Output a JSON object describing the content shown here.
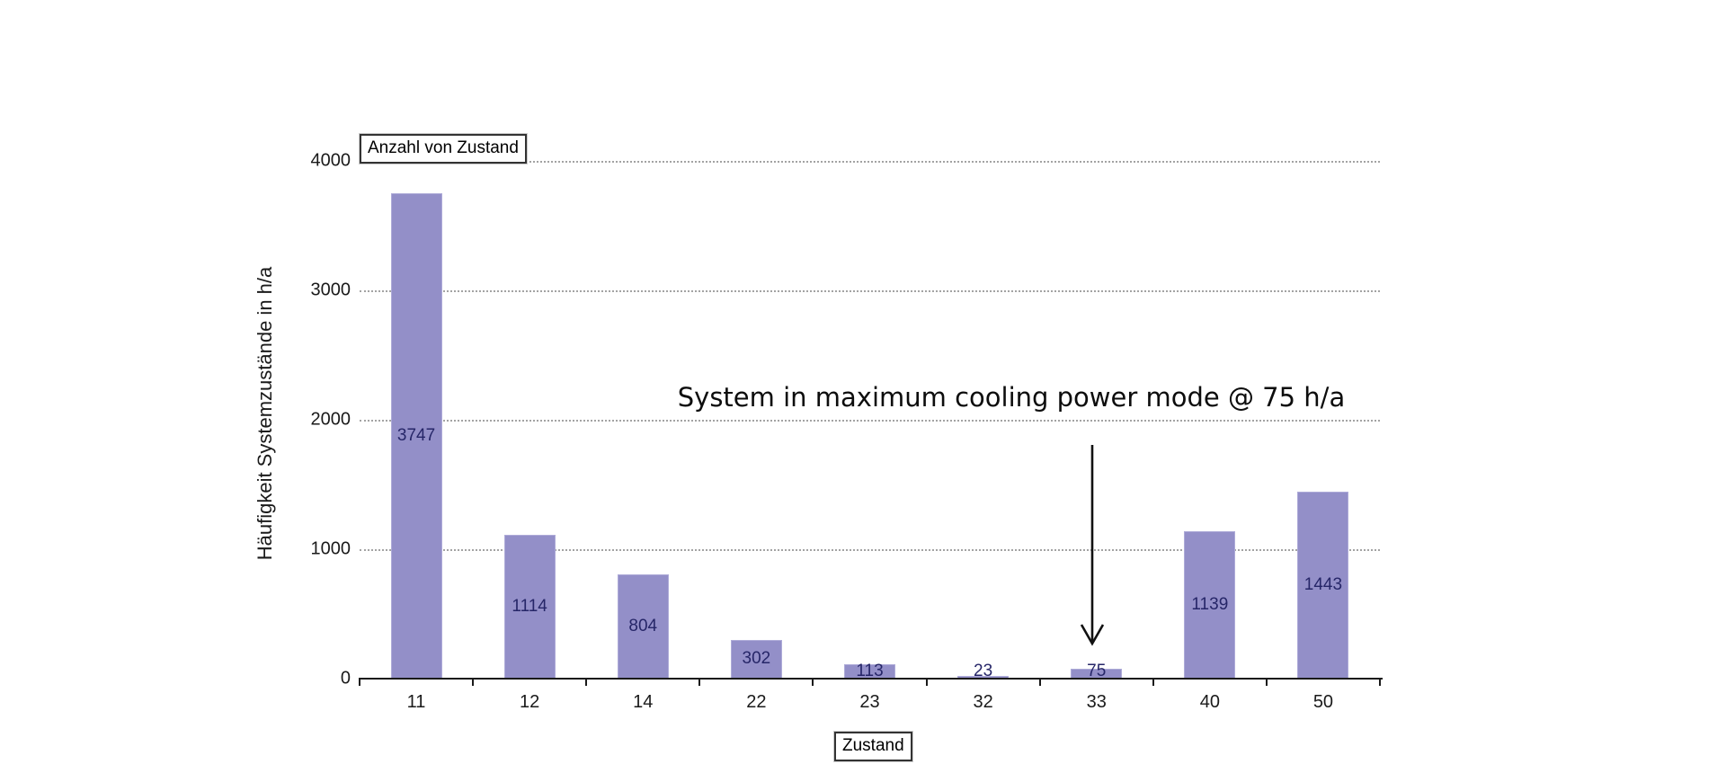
{
  "page": {
    "background": "#ffffff"
  },
  "chart_data": {
    "type": "bar",
    "title_box": "Anzahl von Zustand",
    "categories": [
      "11",
      "12",
      "14",
      "22",
      "23",
      "32",
      "33",
      "40",
      "50"
    ],
    "values": [
      3747,
      1114,
      804,
      302,
      113,
      23,
      75,
      1139,
      1443
    ],
    "xlabel": "Zustand",
    "ylabel": "Häufigkeit Systemzustände in h/a",
    "ylim": [
      0,
      4000
    ],
    "yticks": [
      0,
      1000,
      2000,
      3000,
      4000
    ],
    "grid": "horizontal-dotted",
    "legend": "none",
    "bar_color": "#938fc8",
    "bar_border_color": "#aeabd8",
    "data_label_color": "#262668",
    "annotation": {
      "text": "System in maximum cooling power mode @ 75 h/a",
      "target_category": "33",
      "target_value": 75
    }
  }
}
